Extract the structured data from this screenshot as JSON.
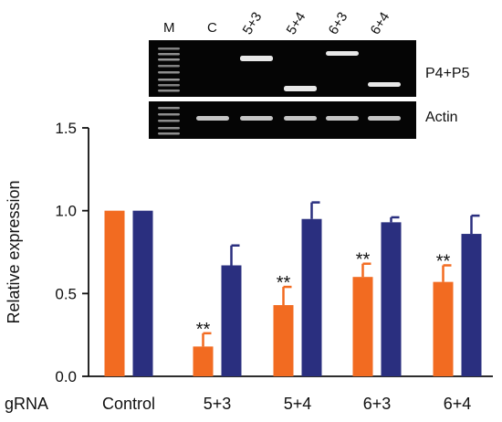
{
  "gel": {
    "lanes": [
      "M",
      "C",
      "5+3",
      "5+4",
      "6+3",
      "6+4"
    ],
    "top_panel_label": "P4+P5",
    "bottom_panel_label": "Actin",
    "band_color": "#e8e8e8"
  },
  "chart_data": {
    "type": "bar",
    "row_label": "gRNA",
    "categories": [
      "Control",
      "5+3",
      "5+4",
      "6+3",
      "6+4"
    ],
    "ylabel": "Relative expression",
    "xlabel": "",
    "ylim": [
      0,
      1.5
    ],
    "yticks": [
      0.0,
      0.5,
      1.0,
      1.5
    ],
    "ytick_labels": [
      "0.0",
      "0.5",
      "1.0",
      "1.5"
    ],
    "grid": false,
    "series": [
      {
        "color": "#f26b21",
        "values": [
          1.0,
          0.18,
          0.43,
          0.6,
          0.57
        ],
        "errors": [
          0,
          0.08,
          0.11,
          0.08,
          0.1
        ]
      },
      {
        "color": "#2a2f7f",
        "values": [
          1.0,
          0.67,
          0.95,
          0.93,
          0.86
        ],
        "errors": [
          0,
          0.12,
          0.1,
          0.03,
          0.11
        ]
      }
    ],
    "annotations": [
      {
        "category": "5+3",
        "series": 0,
        "text": "**"
      },
      {
        "category": "5+4",
        "series": 0,
        "text": "**"
      },
      {
        "category": "6+3",
        "series": 0,
        "text": "**"
      },
      {
        "category": "6+4",
        "series": 0,
        "text": "**"
      }
    ]
  }
}
